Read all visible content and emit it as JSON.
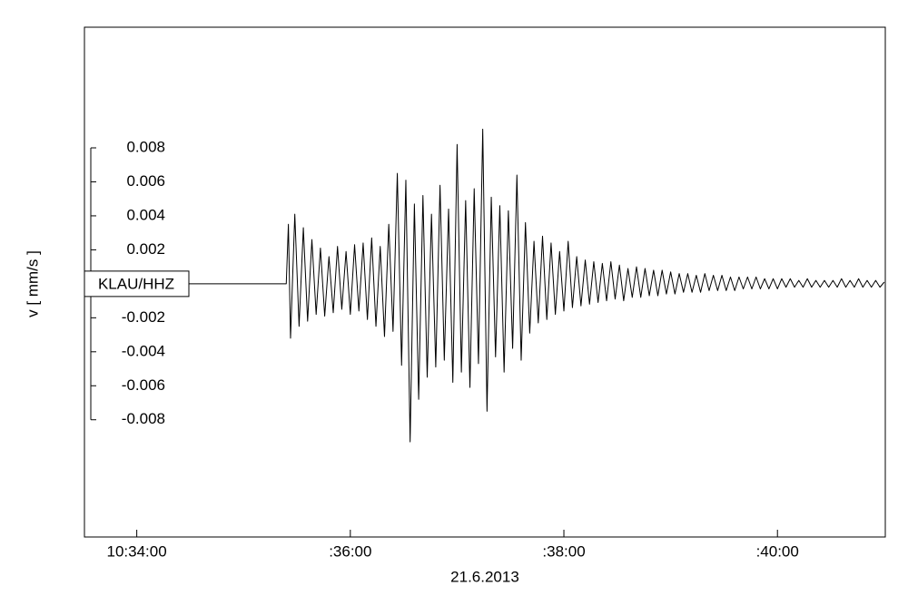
{
  "chart_data": {
    "type": "line",
    "station": "KLAU/HHZ",
    "y_label": "v [ mm/s ]",
    "x_label": "21.6.2013",
    "xlim": [
      33.51,
      41.01
    ],
    "xticks": [
      {
        "value": 34,
        "label": "10:34:00"
      },
      {
        "value": 36,
        "label": ":36:00"
      },
      {
        "value": 38,
        "label": ":38:00"
      },
      {
        "value": 40,
        "label": ":40:00"
      }
    ],
    "ylim": [
      -0.0149,
      0.0151
    ],
    "yticks": [
      0.008,
      0.006,
      0.004,
      0.002,
      -0.002,
      -0.004,
      -0.006,
      -0.008
    ],
    "color": "#000000",
    "x": [
      33.51,
      35.4,
      35.42,
      35.44,
      35.48,
      35.52,
      35.56,
      35.6,
      35.64,
      35.68,
      35.72,
      35.76,
      35.8,
      35.84,
      35.88,
      35.92,
      35.96,
      36.0,
      36.04,
      36.08,
      36.12,
      36.16,
      36.2,
      36.24,
      36.28,
      36.32,
      36.36,
      36.4,
      36.44,
      36.48,
      36.52,
      36.56,
      36.6,
      36.64,
      36.68,
      36.72,
      36.76,
      36.8,
      36.84,
      36.88,
      36.92,
      36.96,
      37.0,
      37.04,
      37.08,
      37.12,
      37.16,
      37.2,
      37.24,
      37.28,
      37.32,
      37.36,
      37.4,
      37.44,
      37.48,
      37.52,
      37.56,
      37.6,
      37.64,
      37.68,
      37.72,
      37.76,
      37.8,
      37.84,
      37.88,
      37.92,
      37.96,
      38.0,
      38.04,
      38.08,
      38.12,
      38.16,
      38.2,
      38.24,
      38.28,
      38.32,
      38.36,
      38.4,
      38.44,
      38.48,
      38.52,
      38.56,
      38.6,
      38.64,
      38.68,
      38.72,
      38.76,
      38.8,
      38.84,
      38.88,
      38.92,
      38.96,
      39.0,
      39.04,
      39.08,
      39.12,
      39.16,
      39.2,
      39.24,
      39.28,
      39.32,
      39.36,
      39.4,
      39.44,
      39.48,
      39.52,
      39.56,
      39.6,
      39.64,
      39.68,
      39.72,
      39.76,
      39.8,
      39.84,
      39.88,
      39.92,
      39.96,
      40.0,
      40.04,
      40.08,
      40.12,
      40.16,
      40.2,
      40.24,
      40.28,
      40.32,
      40.36,
      40.4,
      40.44,
      40.48,
      40.52,
      40.56,
      40.6,
      40.64,
      40.68,
      40.72,
      40.76,
      40.8,
      40.84,
      40.88,
      40.92,
      40.96,
      41.0
    ],
    "values": [
      0,
      0,
      0.0035,
      -0.0032,
      0.0041,
      -0.0025,
      0.0033,
      -0.0022,
      0.0026,
      -0.0018,
      0.0021,
      -0.0019,
      0.0016,
      -0.0017,
      0.0022,
      -0.0015,
      0.0019,
      -0.0018,
      0.0023,
      -0.0016,
      0.0024,
      -0.0021,
      0.0027,
      -0.0025,
      0.0022,
      -0.0031,
      0.0035,
      -0.0028,
      0.0065,
      -0.0048,
      0.0061,
      -0.0093,
      0.0047,
      -0.0068,
      0.0052,
      -0.0055,
      0.0041,
      -0.0049,
      0.0058,
      -0.0045,
      0.0044,
      -0.0058,
      0.0082,
      -0.0052,
      0.0049,
      -0.0061,
      0.0056,
      -0.0047,
      0.0091,
      -0.0075,
      0.0051,
      -0.0043,
      0.0046,
      -0.0052,
      0.0043,
      -0.0038,
      0.0064,
      -0.0045,
      0.0036,
      -0.0029,
      0.0025,
      -0.0023,
      0.0028,
      -0.0021,
      0.0024,
      -0.0018,
      0.0019,
      -0.0016,
      0.0025,
      -0.0014,
      0.0016,
      -0.0013,
      0.0014,
      -0.0012,
      0.0013,
      -0.0011,
      0.0012,
      -0.001,
      0.0013,
      -0.0009,
      0.0011,
      -0.001,
      0.0009,
      -0.0008,
      0.001,
      -0.0008,
      0.0009,
      -0.0007,
      0.0008,
      -0.0007,
      0.0008,
      -0.0006,
      0.0007,
      -0.0006,
      0.0006,
      -0.0005,
      0.0006,
      -0.0005,
      0.0005,
      -0.0005,
      0.0006,
      -0.0004,
      0.0005,
      -0.0004,
      0.0005,
      -0.0004,
      0.0004,
      -0.0004,
      0.0004,
      -0.0003,
      0.0004,
      -0.0003,
      0.0004,
      -0.0003,
      0.0003,
      -0.0003,
      0.0003,
      -0.0003,
      0.0003,
      -0.0002,
      0.0003,
      -0.0002,
      0.0002,
      -0.0002,
      0.0003,
      -0.0002,
      0.0002,
      -0.0002,
      0.0002,
      -0.0002,
      0.0002,
      -0.0002,
      0.0003,
      -0.0002,
      0.0002,
      -0.0002,
      0.0003,
      -0.0002,
      0.0002,
      -0.0002,
      0.0002,
      -0.0002,
      0.0001
    ]
  }
}
